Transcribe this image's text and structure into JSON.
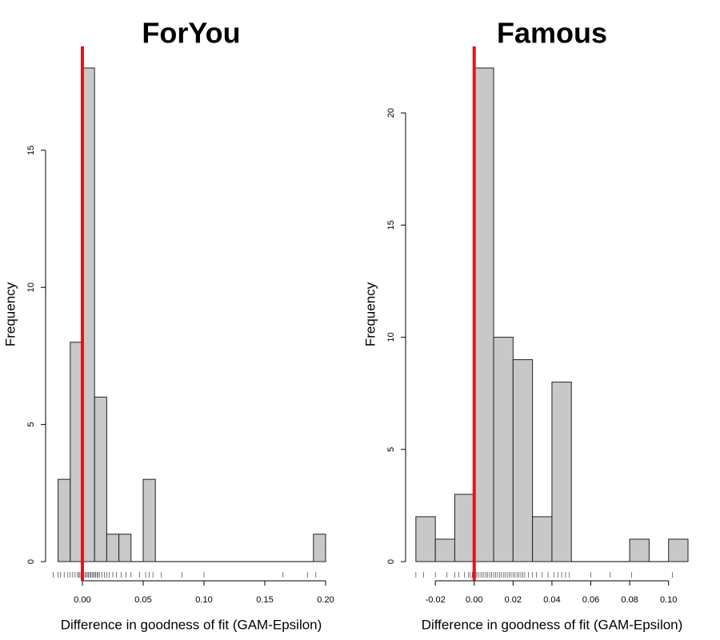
{
  "chart_data": [
    {
      "type": "histogram",
      "title": "ForYou",
      "xlabel": "Difference in goodness of fit (GAM-Epsilon)",
      "ylabel": "Frequency",
      "xlim": [
        -0.025,
        0.2
      ],
      "ylim": [
        0,
        18
      ],
      "xticks": [
        0.0,
        0.05,
        0.1,
        0.15,
        0.2
      ],
      "xtick_labels": [
        "0.00",
        "0.05",
        "0.10",
        "0.15",
        "0.20"
      ],
      "yticks": [
        0,
        5,
        10,
        15
      ],
      "yaxis_max": 15,
      "bins": [
        {
          "x0": -0.02,
          "x1": -0.01,
          "count": 3
        },
        {
          "x0": -0.01,
          "x1": 0.0,
          "count": 8
        },
        {
          "x0": 0.0,
          "x1": 0.01,
          "count": 18
        },
        {
          "x0": 0.01,
          "x1": 0.02,
          "count": 6
        },
        {
          "x0": 0.02,
          "x1": 0.03,
          "count": 1
        },
        {
          "x0": 0.03,
          "x1": 0.04,
          "count": 1
        },
        {
          "x0": 0.04,
          "x1": 0.05,
          "count": 0
        },
        {
          "x0": 0.05,
          "x1": 0.06,
          "count": 3
        },
        {
          "x0": 0.06,
          "x1": 0.07,
          "count": 0
        },
        {
          "x0": 0.07,
          "x1": 0.08,
          "count": 0
        },
        {
          "x0": 0.08,
          "x1": 0.09,
          "count": 0
        },
        {
          "x0": 0.09,
          "x1": 0.1,
          "count": 0
        },
        {
          "x0": 0.1,
          "x1": 0.11,
          "count": 0
        },
        {
          "x0": 0.11,
          "x1": 0.12,
          "count": 0
        },
        {
          "x0": 0.12,
          "x1": 0.13,
          "count": 0
        },
        {
          "x0": 0.13,
          "x1": 0.14,
          "count": 0
        },
        {
          "x0": 0.14,
          "x1": 0.15,
          "count": 0
        },
        {
          "x0": 0.15,
          "x1": 0.16,
          "count": 0
        },
        {
          "x0": 0.16,
          "x1": 0.17,
          "count": 0
        },
        {
          "x0": 0.17,
          "x1": 0.18,
          "count": 0
        },
        {
          "x0": 0.18,
          "x1": 0.19,
          "count": 0
        },
        {
          "x0": 0.19,
          "x1": 0.2,
          "count": 1
        }
      ],
      "reference_line_x": 0.0,
      "reference_line_color": "#e4141b",
      "bar_color": "#c8c8c8",
      "rug": [
        -0.024,
        -0.02,
        -0.018,
        -0.015,
        -0.012,
        -0.01,
        -0.008,
        -0.006,
        -0.004,
        -0.003,
        -0.002,
        -0.001,
        0.0,
        0.001,
        0.002,
        0.003,
        0.004,
        0.005,
        0.006,
        0.007,
        0.008,
        0.009,
        0.01,
        0.011,
        0.012,
        0.013,
        0.014,
        0.016,
        0.018,
        0.02,
        0.022,
        0.025,
        0.028,
        0.032,
        0.036,
        0.04,
        0.047,
        0.052,
        0.055,
        0.058,
        0.065,
        0.082,
        0.1,
        0.165,
        0.185,
        0.192
      ]
    },
    {
      "type": "histogram",
      "title": "Famous",
      "xlabel": "Difference in goodness of fit (GAM-Epsilon)",
      "ylabel": "Frequency",
      "xlim": [
        -0.032,
        0.11
      ],
      "ylim": [
        0,
        22
      ],
      "xticks": [
        -0.02,
        0.0,
        0.02,
        0.04,
        0.06,
        0.08,
        0.1
      ],
      "xtick_labels": [
        "-0.02",
        "0.00",
        "0.02",
        "0.04",
        "0.06",
        "0.08",
        "0.10"
      ],
      "yticks": [
        0,
        5,
        10,
        15,
        20
      ],
      "yaxis_max": 20,
      "bins": [
        {
          "x0": -0.03,
          "x1": -0.02,
          "count": 2
        },
        {
          "x0": -0.02,
          "x1": -0.01,
          "count": 1
        },
        {
          "x0": -0.01,
          "x1": 0.0,
          "count": 3
        },
        {
          "x0": 0.0,
          "x1": 0.01,
          "count": 22
        },
        {
          "x0": 0.01,
          "x1": 0.02,
          "count": 10
        },
        {
          "x0": 0.02,
          "x1": 0.03,
          "count": 9
        },
        {
          "x0": 0.03,
          "x1": 0.04,
          "count": 2
        },
        {
          "x0": 0.04,
          "x1": 0.05,
          "count": 8
        },
        {
          "x0": 0.05,
          "x1": 0.06,
          "count": 0
        },
        {
          "x0": 0.06,
          "x1": 0.07,
          "count": 0
        },
        {
          "x0": 0.07,
          "x1": 0.08,
          "count": 0
        },
        {
          "x0": 0.08,
          "x1": 0.09,
          "count": 1
        },
        {
          "x0": 0.09,
          "x1": 0.1,
          "count": 0
        },
        {
          "x0": 0.1,
          "x1": 0.11,
          "count": 1
        }
      ],
      "reference_line_x": 0.0,
      "reference_line_color": "#e4141b",
      "bar_color": "#c8c8c8",
      "rug": [
        -0.03,
        -0.026,
        -0.02,
        -0.014,
        -0.01,
        -0.008,
        -0.005,
        -0.003,
        -0.002,
        -0.001,
        0.0,
        0.001,
        0.002,
        0.003,
        0.004,
        0.005,
        0.006,
        0.007,
        0.008,
        0.009,
        0.01,
        0.011,
        0.012,
        0.013,
        0.014,
        0.015,
        0.016,
        0.017,
        0.018,
        0.019,
        0.02,
        0.021,
        0.022,
        0.023,
        0.024,
        0.025,
        0.026,
        0.028,
        0.03,
        0.032,
        0.035,
        0.038,
        0.041,
        0.043,
        0.045,
        0.047,
        0.049,
        0.06,
        0.07,
        0.081,
        0.102
      ]
    }
  ]
}
